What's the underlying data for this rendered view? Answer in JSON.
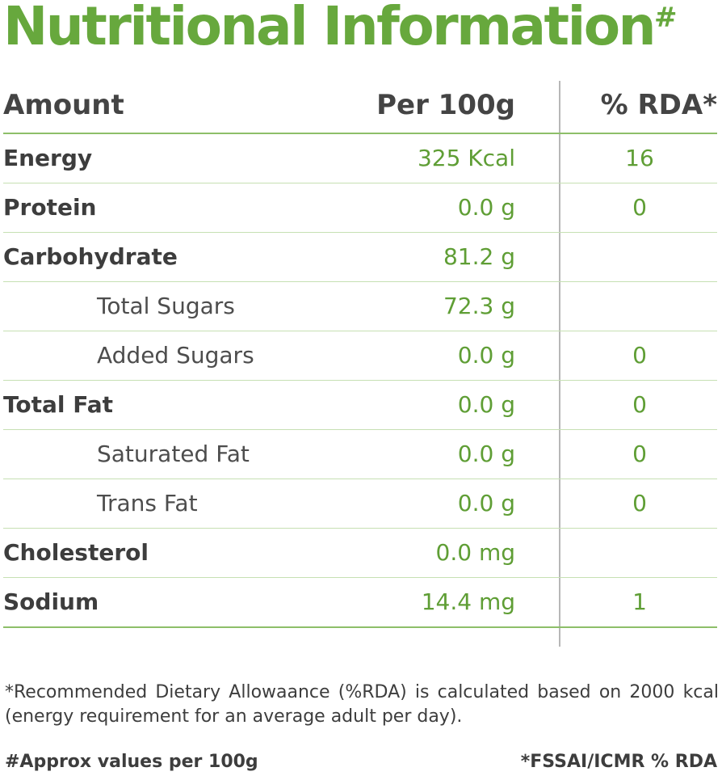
{
  "title": {
    "text": "Nutritional Information",
    "mark": "#"
  },
  "header": {
    "amount": "Amount",
    "per": "Per 100g",
    "rda": "% RDA*"
  },
  "rows": [
    {
      "name": "Energy",
      "value": "325 Kcal",
      "rda": "16"
    },
    {
      "name": "Protein",
      "value": "0.0 g",
      "rda": "0"
    },
    {
      "name": "Carbohydrate",
      "value": "81.2 g",
      "rda": ""
    },
    {
      "name": "Total Sugars",
      "value": "72.3 g",
      "rda": ""
    },
    {
      "name": "Added Sugars",
      "value": "0.0 g",
      "rda": "0"
    },
    {
      "name": "Total Fat",
      "value": "0.0 g",
      "rda": "0"
    },
    {
      "name": "Saturated Fat",
      "value": "0.0 g",
      "rda": "0"
    },
    {
      "name": "Trans Fat",
      "value": "0.0 g",
      "rda": "0"
    },
    {
      "name": "Cholesterol",
      "value": "0.0 mg",
      "rda": ""
    },
    {
      "name": "Sodium",
      "value": "14.4 mg",
      "rda": "1"
    }
  ],
  "note": "*Recommended Dietary Allowaance (%RDA) is calculated based on 2000 kcal (energy requirement for an average adult per day).",
  "footer": {
    "left": "#Approx values per 100g",
    "right": "*FSSAI/ICMR % RDA"
  },
  "colors": {
    "accent": "#67a83d",
    "text": "#3d3d3d",
    "divider": "#c6e0b3"
  }
}
